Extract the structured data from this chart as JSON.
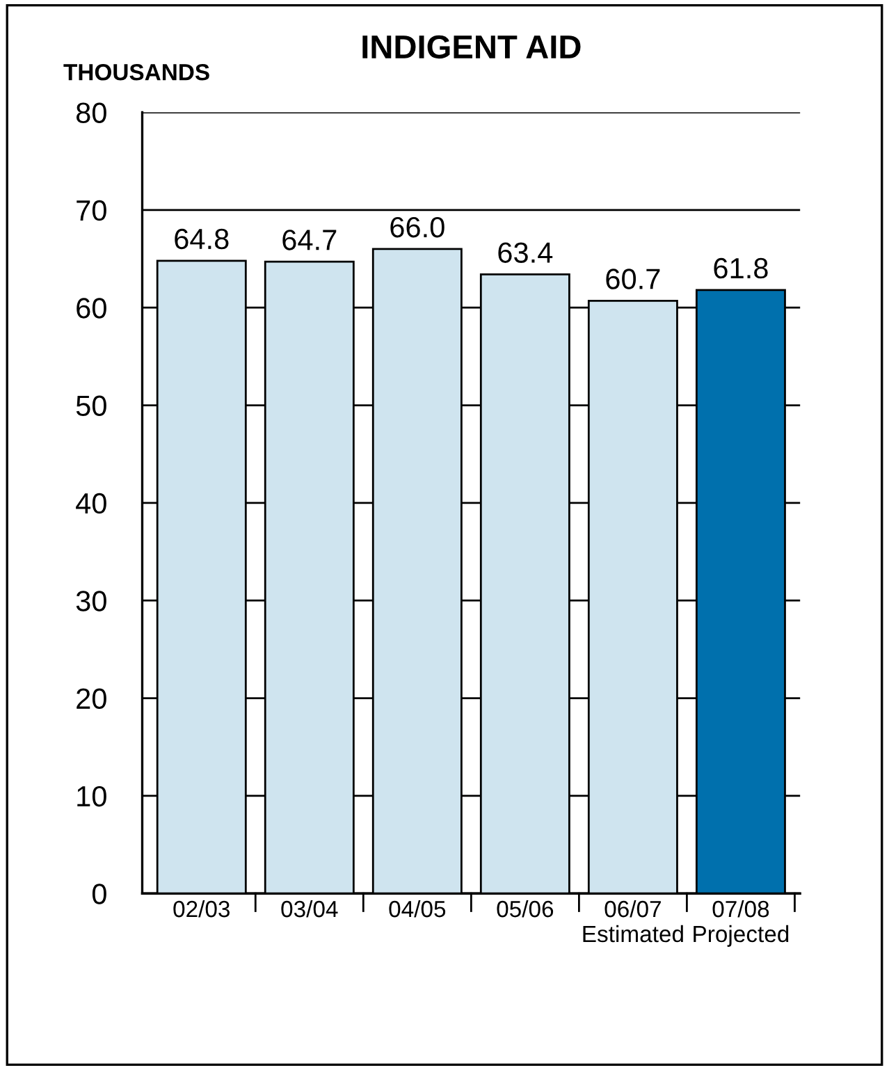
{
  "chart_data": {
    "type": "bar",
    "title": "INDIGENT AID",
    "ylabel": "THOUSANDS",
    "categories": [
      "02/03",
      "03/04",
      "04/05",
      "05/06",
      "06/07\nEstimated",
      "07/08\nProjected"
    ],
    "values": [
      64.8,
      64.7,
      66.0,
      63.4,
      60.7,
      61.8
    ],
    "colors": [
      "#cfe4ef",
      "#cfe4ef",
      "#cfe4ef",
      "#cfe4ef",
      "#cfe4ef",
      "#0070ad"
    ],
    "ylim": [
      0,
      80
    ],
    "yticks": [
      0,
      10,
      20,
      30,
      40,
      50,
      60,
      70,
      80
    ],
    "grid": "y",
    "value_labels": [
      "64.8",
      "64.7",
      "66.0",
      "63.4",
      "60.7",
      "61.8"
    ]
  }
}
